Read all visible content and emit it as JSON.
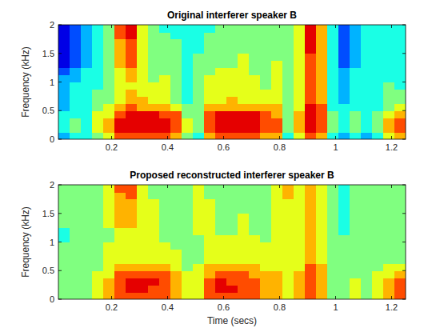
{
  "chart_data": [
    {
      "type": "heatmap",
      "title": "Original interferer speaker B",
      "ylabel": "Frequency (kHz)",
      "xlim": [
        0.01,
        1.25
      ],
      "xticks": [
        0.2,
        0.4,
        0.6,
        0.8,
        1,
        1.2
      ],
      "ylim": [
        0,
        2
      ],
      "yticks": [
        0,
        0.5,
        1,
        1.5,
        2
      ],
      "zlim": [
        0,
        10
      ],
      "cells": [
        [
          3,
          4,
          4,
          5,
          6,
          8,
          8,
          8,
          8,
          8,
          7,
          5,
          4,
          7,
          8,
          8,
          8,
          8,
          7,
          7,
          4,
          6,
          8,
          7,
          4,
          3,
          4,
          3,
          4,
          6,
          7
        ],
        [
          4,
          5,
          4,
          6,
          7,
          9,
          9,
          9,
          9,
          9,
          8,
          6,
          5,
          8,
          9,
          9,
          9,
          9,
          8,
          8,
          5,
          7,
          9,
          8,
          5,
          4,
          5,
          4,
          5,
          7,
          8
        ],
        [
          4,
          5,
          4,
          6,
          7,
          9,
          9,
          9,
          9,
          9,
          8,
          6,
          5,
          8,
          9,
          9,
          9,
          9,
          8,
          8,
          5,
          7,
          9,
          8,
          5,
          4,
          5,
          4,
          5,
          7,
          8
        ],
        [
          4,
          4,
          4,
          6,
          6,
          8,
          9,
          9,
          9,
          8,
          8,
          5,
          5,
          8,
          9,
          9,
          9,
          9,
          8,
          7,
          5,
          7,
          9,
          8,
          5,
          4,
          5,
          4,
          5,
          6,
          7
        ],
        [
          3,
          4,
          4,
          5,
          6,
          7,
          8,
          7,
          7,
          7,
          6,
          5,
          5,
          7,
          7,
          7,
          7,
          7,
          7,
          7,
          5,
          6,
          9,
          8,
          4,
          4,
          4,
          4,
          4,
          5,
          6
        ],
        [
          3,
          4,
          4,
          5,
          5,
          6,
          7,
          7,
          6,
          6,
          5,
          4,
          5,
          6,
          6,
          7,
          6,
          6,
          6,
          6,
          5,
          6,
          8,
          7,
          4,
          3,
          4,
          4,
          4,
          5,
          5
        ],
        [
          3,
          4,
          4,
          5,
          5,
          6,
          7,
          6,
          6,
          6,
          5,
          4,
          5,
          6,
          6,
          6,
          6,
          6,
          6,
          6,
          5,
          6,
          8,
          7,
          4,
          3,
          4,
          4,
          4,
          5,
          5
        ],
        [
          3,
          4,
          4,
          4,
          5,
          6,
          6,
          6,
          6,
          6,
          5,
          4,
          5,
          6,
          6,
          6,
          6,
          6,
          5,
          6,
          5,
          6,
          8,
          7,
          4,
          3,
          4,
          4,
          4,
          5,
          4
        ],
        [
          3,
          3,
          4,
          4,
          5,
          6,
          7,
          6,
          5,
          6,
          5,
          4,
          5,
          6,
          6,
          6,
          6,
          6,
          5,
          6,
          5,
          6,
          8,
          7,
          4,
          3,
          4,
          4,
          4,
          4,
          4
        ],
        [
          2,
          3,
          4,
          4,
          5,
          6,
          7,
          6,
          5,
          5,
          5,
          4,
          5,
          5,
          6,
          6,
          6,
          5,
          5,
          6,
          5,
          6,
          8,
          7,
          4,
          3,
          4,
          4,
          4,
          4,
          4
        ],
        [
          1,
          2,
          3,
          4,
          5,
          7,
          8,
          6,
          5,
          5,
          5,
          4,
          5,
          5,
          5,
          5,
          6,
          5,
          5,
          6,
          5,
          6,
          8,
          7,
          4,
          2,
          3,
          4,
          4,
          4,
          4
        ],
        [
          1,
          2,
          3,
          4,
          5,
          7,
          8,
          6,
          5,
          5,
          5,
          4,
          5,
          5,
          5,
          5,
          6,
          5,
          5,
          5,
          5,
          6,
          8,
          7,
          4,
          2,
          3,
          4,
          4,
          4,
          4
        ],
        [
          1,
          2,
          3,
          4,
          5,
          7,
          8,
          6,
          5,
          5,
          5,
          4,
          4,
          5,
          5,
          5,
          5,
          5,
          5,
          5,
          5,
          6,
          9,
          7,
          4,
          2,
          3,
          4,
          4,
          4,
          4
        ],
        [
          1,
          2,
          3,
          4,
          5,
          7,
          8,
          6,
          5,
          5,
          5,
          4,
          4,
          5,
          5,
          5,
          5,
          5,
          5,
          5,
          5,
          6,
          9,
          7,
          4,
          2,
          3,
          4,
          4,
          4,
          4
        ],
        [
          1,
          2,
          3,
          4,
          5,
          8,
          9,
          6,
          5,
          5,
          4,
          4,
          4,
          5,
          5,
          5,
          5,
          5,
          5,
          5,
          5,
          6,
          9,
          7,
          4,
          2,
          3,
          4,
          4,
          4,
          4
        ],
        [
          1,
          2,
          3,
          4,
          5,
          8,
          9,
          6,
          5,
          4,
          4,
          4,
          4,
          4,
          5,
          5,
          5,
          5,
          5,
          5,
          5,
          6,
          9,
          7,
          4,
          2,
          3,
          4,
          4,
          4,
          4
        ]
      ]
    },
    {
      "type": "heatmap",
      "title": "Proposed reconstructed interferer speaker B",
      "ylabel": "Frequency (kHz)",
      "xlabel": "Time (secs)",
      "xlim": [
        0.01,
        1.25
      ],
      "xticks": [
        0.2,
        0.4,
        0.6,
        0.8,
        1,
        1.2
      ],
      "ylim": [
        0,
        2
      ],
      "yticks": [
        0,
        0.5,
        1,
        1.5,
        2
      ],
      "zlim": [
        0,
        10
      ],
      "cells": [
        [
          5,
          5,
          5,
          6,
          7,
          8,
          8,
          8,
          8,
          8,
          7,
          6,
          6,
          8,
          8,
          8,
          8,
          8,
          7,
          7,
          6,
          7,
          8,
          7,
          5,
          5,
          6,
          5,
          6,
          7,
          8
        ],
        [
          5,
          5,
          5,
          6,
          7,
          8,
          9,
          9,
          8,
          8,
          7,
          6,
          6,
          8,
          9,
          9,
          8,
          8,
          7,
          7,
          6,
          7,
          8,
          7,
          5,
          5,
          6,
          5,
          6,
          7,
          8
        ],
        [
          5,
          5,
          5,
          6,
          7,
          8,
          9,
          9,
          9,
          8,
          7,
          6,
          6,
          8,
          9,
          8,
          8,
          8,
          7,
          7,
          6,
          7,
          8,
          7,
          5,
          5,
          6,
          5,
          6,
          7,
          8
        ],
        [
          5,
          5,
          5,
          6,
          6,
          8,
          8,
          8,
          8,
          8,
          7,
          6,
          6,
          7,
          8,
          8,
          8,
          7,
          7,
          7,
          6,
          7,
          8,
          7,
          5,
          5,
          5,
          5,
          6,
          6,
          7
        ],
        [
          5,
          5,
          5,
          5,
          6,
          7,
          7,
          7,
          7,
          7,
          6,
          5,
          6,
          7,
          7,
          7,
          7,
          7,
          6,
          6,
          6,
          6,
          8,
          7,
          5,
          5,
          5,
          5,
          5,
          6,
          6
        ],
        [
          5,
          5,
          5,
          5,
          6,
          6,
          6,
          6,
          6,
          6,
          6,
          5,
          5,
          6,
          6,
          6,
          6,
          6,
          6,
          6,
          6,
          6,
          7,
          6,
          5,
          5,
          5,
          5,
          5,
          5,
          5
        ],
        [
          5,
          5,
          5,
          5,
          6,
          6,
          6,
          6,
          6,
          6,
          6,
          5,
          5,
          6,
          6,
          6,
          6,
          6,
          6,
          6,
          6,
          6,
          7,
          6,
          5,
          5,
          5,
          5,
          5,
          5,
          5
        ],
        [
          5,
          5,
          5,
          5,
          6,
          6,
          6,
          6,
          6,
          6,
          5,
          5,
          5,
          6,
          6,
          6,
          6,
          6,
          6,
          6,
          6,
          6,
          7,
          6,
          5,
          5,
          5,
          5,
          5,
          5,
          5
        ],
        [
          4,
          5,
          5,
          5,
          5,
          6,
          6,
          6,
          6,
          5,
          5,
          5,
          5,
          6,
          6,
          6,
          6,
          6,
          5,
          6,
          6,
          6,
          7,
          6,
          5,
          5,
          5,
          5,
          5,
          5,
          5
        ],
        [
          4,
          5,
          5,
          5,
          5,
          6,
          6,
          6,
          6,
          5,
          5,
          5,
          6,
          6,
          5,
          5,
          6,
          5,
          5,
          6,
          6,
          6,
          7,
          6,
          5,
          4,
          5,
          5,
          5,
          5,
          5
        ],
        [
          5,
          5,
          5,
          5,
          6,
          7,
          7,
          6,
          6,
          5,
          5,
          5,
          6,
          6,
          5,
          5,
          6,
          5,
          5,
          6,
          6,
          6,
          7,
          6,
          5,
          4,
          5,
          5,
          5,
          5,
          5
        ],
        [
          5,
          5,
          5,
          5,
          6,
          7,
          7,
          6,
          6,
          5,
          5,
          5,
          6,
          6,
          5,
          5,
          6,
          5,
          5,
          6,
          6,
          6,
          7,
          6,
          5,
          4,
          5,
          5,
          5,
          5,
          5
        ],
        [
          5,
          5,
          5,
          5,
          6,
          7,
          7,
          6,
          6,
          5,
          5,
          5,
          6,
          6,
          5,
          5,
          5,
          5,
          5,
          6,
          6,
          6,
          7,
          6,
          5,
          4,
          5,
          5,
          5,
          5,
          5
        ],
        [
          5,
          5,
          5,
          5,
          6,
          7,
          7,
          6,
          6,
          5,
          5,
          5,
          6,
          6,
          5,
          5,
          5,
          5,
          5,
          6,
          6,
          6,
          7,
          6,
          5,
          4,
          5,
          5,
          5,
          5,
          5
        ],
        [
          5,
          5,
          5,
          5,
          6,
          7,
          8,
          6,
          5,
          5,
          5,
          5,
          6,
          5,
          5,
          5,
          5,
          5,
          5,
          6,
          7,
          6,
          7,
          6,
          5,
          4,
          5,
          5,
          5,
          5,
          5
        ],
        [
          5,
          5,
          5,
          5,
          6,
          8,
          8,
          6,
          5,
          5,
          5,
          5,
          6,
          5,
          5,
          5,
          5,
          5,
          5,
          6,
          7,
          6,
          7,
          6,
          5,
          4,
          5,
          5,
          5,
          5,
          5
        ]
      ]
    }
  ]
}
